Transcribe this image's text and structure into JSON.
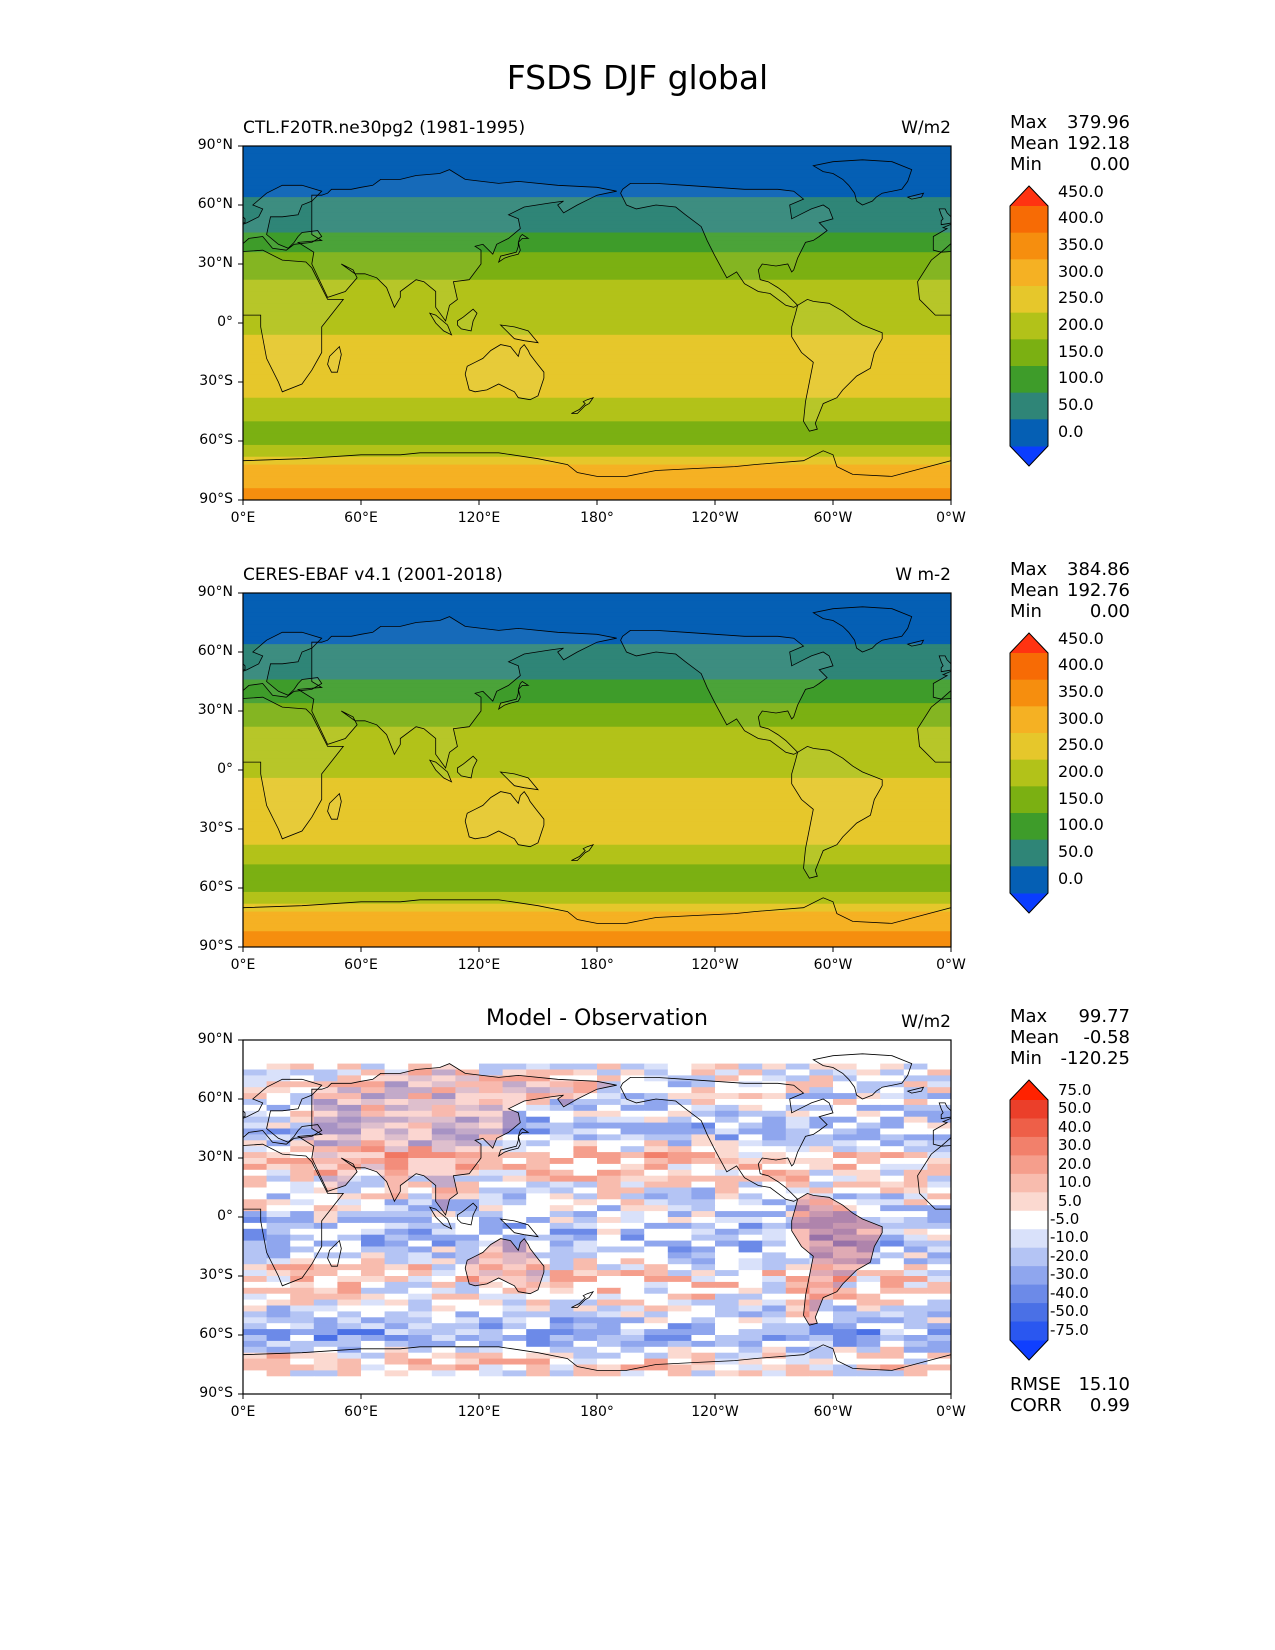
{
  "title": "FSDS DJF global",
  "lon_ticks": [
    "0°E",
    "60°E",
    "120°E",
    "180°",
    "120°W",
    "60°W",
    "0°W"
  ],
  "lat_ticks": [
    "90°N",
    "60°N",
    "30°N",
    "0°",
    "30°S",
    "60°S",
    "90°S"
  ],
  "panels": [
    {
      "name": "test",
      "left_title": "CTL.F20TR.ne30pg2 (1981-1995)",
      "center_title": "",
      "units": "W/m2",
      "stats": [
        {
          "label": "Max",
          "value": "379.96"
        },
        {
          "label": "Mean",
          "value": "192.18"
        },
        {
          "label": "Min",
          "value": "0.00"
        }
      ],
      "colorbar_levels": [
        "0.0",
        "50.0",
        "100.0",
        "150.0",
        "200.0",
        "250.0",
        "300.0",
        "350.0",
        "400.0",
        "450.0"
      ],
      "colorbar_colors": [
        "#0a3dff",
        "#055fb4",
        "#2f8577",
        "#3e9c2a",
        "#7bb012",
        "#b2c219",
        "#e6c72b",
        "#f5b123",
        "#f68e0e",
        "#f76b05",
        "#ff3311"
      ]
    },
    {
      "name": "reference",
      "left_title": "CERES-EBAF v4.1 (2001-2018)",
      "center_title": "",
      "units": "W m-2",
      "stats": [
        {
          "label": "Max",
          "value": "384.86"
        },
        {
          "label": "Mean",
          "value": "192.76"
        },
        {
          "label": "Min",
          "value": "0.00"
        }
      ],
      "colorbar_levels": [
        "0.0",
        "50.0",
        "100.0",
        "150.0",
        "200.0",
        "250.0",
        "300.0",
        "350.0",
        "400.0",
        "450.0"
      ],
      "colorbar_colors": [
        "#0a3dff",
        "#055fb4",
        "#2f8577",
        "#3e9c2a",
        "#7bb012",
        "#b2c219",
        "#e6c72b",
        "#f5b123",
        "#f68e0e",
        "#f76b05",
        "#ff3311"
      ]
    },
    {
      "name": "difference",
      "left_title": "",
      "center_title": "Model - Observation",
      "units": "W/m2",
      "stats": [
        {
          "label": "Max",
          "value": "99.77"
        },
        {
          "label": "Mean",
          "value": "-0.58"
        },
        {
          "label": "Min",
          "value": "-120.25"
        }
      ],
      "extra_stats": [
        {
          "label": "RMSE",
          "value": "15.10"
        },
        {
          "label": "CORR",
          "value": "0.99"
        }
      ],
      "colorbar_levels": [
        "-75.0",
        "-50.0",
        "-40.0",
        "-30.0",
        "-20.0",
        "-10.0",
        "-5.0",
        "5.0",
        "10.0",
        "20.0",
        "30.0",
        "40.0",
        "50.0",
        "75.0"
      ],
      "colorbar_colors": [
        "#0f3fff",
        "#2a57f0",
        "#4a70e6",
        "#6c8ae8",
        "#8fa6ee",
        "#b4c4f4",
        "#d9e1fa",
        "#ffffff",
        "#fbd9d0",
        "#f8bcae",
        "#f59e8c",
        "#f2806b",
        "#ee5f48",
        "#eb3f2a",
        "#ff2200"
      ]
    }
  ],
  "chart_data": [
    {
      "type": "heatmap",
      "left_title": "CTL.F20TR.ne30pg2 (1981-1995)",
      "units": "W/m2",
      "x_ticks": [
        "0°E",
        "60°E",
        "120°E",
        "180°",
        "120°W",
        "60°W",
        "0°W"
      ],
      "y_ticks": [
        "90°N",
        "60°N",
        "30°N",
        "0°",
        "30°S",
        "60°S",
        "90°S"
      ],
      "zonal_band_lat": [
        85,
        70,
        55,
        42,
        30,
        15,
        0,
        -15,
        -30,
        -45,
        -60,
        -75,
        -88
      ],
      "zonal_band_value": [
        5,
        30,
        75,
        115,
        175,
        225,
        230,
        285,
        300,
        215,
        175,
        330,
        360
      ],
      "max": 379.96,
      "mean": 192.18,
      "min": 0.0
    },
    {
      "type": "heatmap",
      "left_title": "CERES-EBAF v4.1 (2001-2018)",
      "units": "W m-2",
      "x_ticks": [
        "0°E",
        "60°E",
        "120°E",
        "180°",
        "120°W",
        "60°W",
        "0°W"
      ],
      "y_ticks": [
        "90°N",
        "60°N",
        "30°N",
        "0°",
        "30°S",
        "60°S",
        "90°S"
      ],
      "zonal_band_lat": [
        85,
        70,
        55,
        42,
        30,
        15,
        0,
        -15,
        -30,
        -45,
        -60,
        -75,
        -88
      ],
      "zonal_band_value": [
        5,
        30,
        75,
        115,
        170,
        225,
        235,
        290,
        300,
        210,
        170,
        340,
        360
      ],
      "max": 384.86,
      "mean": 192.76,
      "min": 0.0
    },
    {
      "type": "heatmap",
      "center_title": "Model - Observation",
      "units": "W/m2",
      "x_ticks": [
        "0°E",
        "60°E",
        "120°E",
        "180°",
        "120°W",
        "60°W",
        "0°W"
      ],
      "y_ticks": [
        "90°N",
        "60°N",
        "30°N",
        "0°",
        "30°S",
        "60°S",
        "90°S"
      ],
      "zonal_band_lat": [
        85,
        70,
        55,
        42,
        30,
        15,
        0,
        -15,
        -30,
        -45,
        -60,
        -75,
        -88
      ],
      "zonal_band_value": [
        0,
        0,
        -8,
        -15,
        15,
        0,
        -12,
        -15,
        10,
        0,
        -25,
        12,
        -20
      ],
      "max": 99.77,
      "mean": -0.58,
      "min": -120.25,
      "rmse": 15.1,
      "corr": 0.99
    }
  ]
}
